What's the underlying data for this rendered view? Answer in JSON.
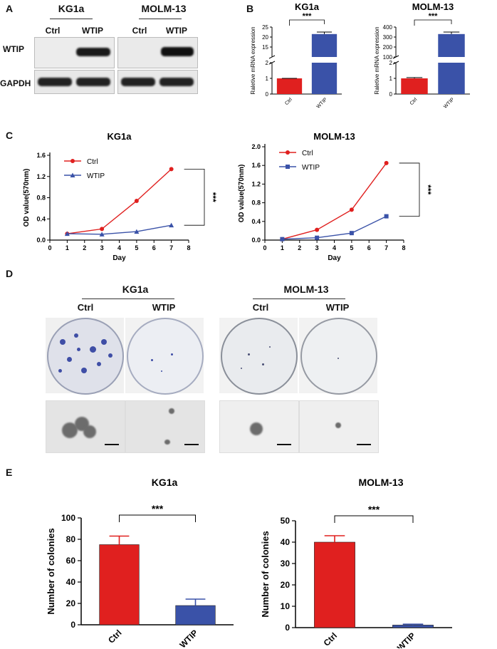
{
  "panels": {
    "A": "A",
    "B": "B",
    "C": "C",
    "D": "D",
    "E": "E"
  },
  "panel_a": {
    "cell_lines": [
      "KG1a",
      "MOLM-13"
    ],
    "lanes": [
      "Ctrl",
      "WTIP"
    ],
    "proteins": [
      "WTIP",
      "GAPDH"
    ]
  },
  "panel_d": {
    "cell_lines": [
      "KG1a",
      "MOLM-13"
    ],
    "conditions": [
      "Ctrl",
      "WTIP"
    ]
  },
  "chart_data": [
    {
      "id": "B1",
      "type": "bar",
      "title": "KG1a",
      "ylabel": "Raletive mRNA expression",
      "categories": [
        "Ctrl",
        "WTIP"
      ],
      "values": [
        1,
        21.5
      ],
      "errors": [
        0,
        1
      ],
      "y_broken_axis": {
        "lower": [
          0,
          2
        ],
        "upper": [
          10,
          25
        ]
      },
      "lower_ticks": [
        "0",
        "1",
        "2"
      ],
      "upper_ticks": [
        "15",
        "20",
        "25"
      ],
      "significance": "***",
      "colors": [
        "#e0201f",
        "#3a52a8"
      ]
    },
    {
      "id": "B2",
      "type": "bar",
      "title": "MOLM-13",
      "ylabel": "Raletive mRNA expression",
      "categories": [
        "Ctrl",
        "WTIP"
      ],
      "values": [
        1,
        330
      ],
      "errors": [
        0.05,
        20
      ],
      "y_broken_axis": {
        "lower": [
          0,
          2
        ],
        "upper": [
          100,
          400
        ]
      },
      "lower_ticks": [
        "0",
        "1",
        "2"
      ],
      "upper_ticks": [
        "100",
        "200",
        "300",
        "400"
      ],
      "significance": "***",
      "colors": [
        "#e0201f",
        "#3a52a8"
      ]
    },
    {
      "id": "C1",
      "type": "line",
      "title": "KG1a",
      "xlabel": "Day",
      "ylabel": "OD value(570nm)",
      "xlim": [
        0,
        8
      ],
      "ylim": [
        0,
        1.6
      ],
      "xticks": [
        "0",
        "1",
        "2",
        "3",
        "4",
        "5",
        "6",
        "7",
        "8"
      ],
      "yticks": [
        "0.0",
        "0.4",
        "0.8",
        "1.2",
        "1.6"
      ],
      "x": [
        1,
        3,
        5,
        7
      ],
      "series": [
        {
          "name": "Ctrl",
          "values": [
            0.12,
            0.21,
            0.74,
            1.34
          ],
          "color": "#e0201f",
          "marker": "circle"
        },
        {
          "name": "WTIP",
          "values": [
            0.12,
            0.11,
            0.16,
            0.28
          ],
          "color": "#3a52a8",
          "marker": "triangle"
        }
      ],
      "significance": "***",
      "legend": "top-left"
    },
    {
      "id": "C2",
      "type": "line",
      "title": "MOLM-13",
      "xlabel": "Day",
      "ylabel": "OD value(570nm)",
      "xlim": [
        0,
        8
      ],
      "ylim": [
        0,
        2.0
      ],
      "xticks": [
        "0",
        "1",
        "2",
        "3",
        "4",
        "5",
        "6",
        "7",
        "8"
      ],
      "yticks": [
        "0.0",
        "0.4",
        "0.8",
        "1.2",
        "1.6",
        "2.0"
      ],
      "x": [
        1,
        3,
        5,
        7
      ],
      "series": [
        {
          "name": "Ctrl",
          "values": [
            0.02,
            0.22,
            0.65,
            1.65
          ],
          "color": "#e0201f",
          "marker": "circle"
        },
        {
          "name": "WTIP",
          "values": [
            0.02,
            0.05,
            0.15,
            0.51
          ],
          "color": "#3a52a8",
          "marker": "square"
        }
      ],
      "significance": "***",
      "legend": "top-left"
    },
    {
      "id": "E1",
      "type": "bar",
      "title": "KG1a",
      "ylabel": "Number of colonies",
      "ylim": [
        0,
        100
      ],
      "yticks": [
        "0",
        "20",
        "40",
        "60",
        "80",
        "100"
      ],
      "categories": [
        "Ctrl",
        "WTIP"
      ],
      "values": [
        75,
        18
      ],
      "errors": [
        8,
        6
      ],
      "significance": "***",
      "colors": [
        "#e0201f",
        "#3a52a8"
      ]
    },
    {
      "id": "E2",
      "type": "bar",
      "title": "MOLM-13",
      "ylabel": "Number of colonies",
      "ylim": [
        0,
        50
      ],
      "yticks": [
        "0",
        "10",
        "20",
        "30",
        "40",
        "50"
      ],
      "categories": [
        "Ctrl",
        "WTIP"
      ],
      "values": [
        40,
        1.2
      ],
      "errors": [
        3,
        0.4
      ],
      "significance": "***",
      "colors": [
        "#e0201f",
        "#3a52a8"
      ]
    }
  ]
}
